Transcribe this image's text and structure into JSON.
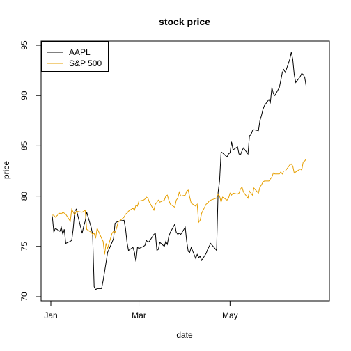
{
  "chart_data": {
    "type": "line",
    "title": "stock price",
    "xlabel": "date",
    "ylabel": "price",
    "xlim": [
      "2019-01-01",
      "2019-06-30"
    ],
    "ylim": [
      70,
      95
    ],
    "grid": false,
    "legend_position": "top-left",
    "x_ticks": [
      {
        "label": "Jan",
        "date": "2019-01-01"
      },
      {
        "label": "Mar",
        "date": "2019-03-01"
      },
      {
        "label": "May",
        "date": "2019-05-01"
      }
    ],
    "y_ticks": [
      70,
      75,
      80,
      85,
      90,
      95
    ],
    "series": [
      {
        "name": "AAPL",
        "color": "#000000",
        "points": [
          [
            "2019-01-02",
            78.0
          ],
          [
            "2019-01-03",
            76.4
          ],
          [
            "2019-01-04",
            76.8
          ],
          [
            "2019-01-07",
            76.5
          ],
          [
            "2019-01-08",
            76.9
          ],
          [
            "2019-01-09",
            76.2
          ],
          [
            "2019-01-10",
            76.7
          ],
          [
            "2019-01-11",
            75.3
          ],
          [
            "2019-01-14",
            75.5
          ],
          [
            "2019-01-15",
            75.6
          ],
          [
            "2019-01-16",
            76.8
          ],
          [
            "2019-01-17",
            78.5
          ],
          [
            "2019-01-18",
            78.7
          ],
          [
            "2019-01-22",
            76.3
          ],
          [
            "2019-01-23",
            77.0
          ],
          [
            "2019-01-24",
            77.5
          ],
          [
            "2019-01-25",
            78.4
          ],
          [
            "2019-01-28",
            76.9
          ],
          [
            "2019-01-29",
            76.2
          ],
          [
            "2019-01-30",
            71.0
          ],
          [
            "2019-01-31",
            70.7
          ],
          [
            "2019-02-01",
            70.8
          ],
          [
            "2019-02-04",
            70.8
          ],
          [
            "2019-02-05",
            71.6
          ],
          [
            "2019-02-06",
            72.5
          ],
          [
            "2019-02-07",
            73.4
          ],
          [
            "2019-02-08",
            74.4
          ],
          [
            "2019-02-11",
            75.4
          ],
          [
            "2019-02-12",
            75.8
          ],
          [
            "2019-02-13",
            77.3
          ],
          [
            "2019-02-14",
            77.4
          ],
          [
            "2019-02-15",
            77.5
          ],
          [
            "2019-02-19",
            77.6
          ],
          [
            "2019-02-20",
            76.8
          ],
          [
            "2019-02-21",
            75.4
          ],
          [
            "2019-02-22",
            74.6
          ],
          [
            "2019-02-25",
            74.9
          ],
          [
            "2019-02-26",
            74.4
          ],
          [
            "2019-02-27",
            73.5
          ],
          [
            "2019-02-28",
            74.9
          ],
          [
            "2019-03-01",
            74.8
          ],
          [
            "2019-03-04",
            75.0
          ],
          [
            "2019-03-05",
            75.1
          ],
          [
            "2019-03-06",
            75.6
          ],
          [
            "2019-03-07",
            75.4
          ],
          [
            "2019-03-08",
            75.5
          ],
          [
            "2019-03-11",
            76.2
          ],
          [
            "2019-03-12",
            76.3
          ],
          [
            "2019-03-13",
            74.6
          ],
          [
            "2019-03-14",
            74.7
          ],
          [
            "2019-03-15",
            75.4
          ],
          [
            "2019-03-18",
            75.0
          ],
          [
            "2019-03-19",
            75.5
          ],
          [
            "2019-03-20",
            75.2
          ],
          [
            "2019-03-21",
            76.0
          ],
          [
            "2019-03-22",
            76.4
          ],
          [
            "2019-03-25",
            77.2
          ],
          [
            "2019-03-26",
            76.4
          ],
          [
            "2019-03-27",
            76.2
          ],
          [
            "2019-03-28",
            76.3
          ],
          [
            "2019-03-29",
            76.2
          ],
          [
            "2019-04-01",
            76.9
          ],
          [
            "2019-04-02",
            75.5
          ],
          [
            "2019-04-03",
            74.5
          ],
          [
            "2019-04-04",
            74.4
          ],
          [
            "2019-04-05",
            74.9
          ],
          [
            "2019-04-08",
            73.8
          ],
          [
            "2019-04-09",
            74.2
          ],
          [
            "2019-04-10",
            73.9
          ],
          [
            "2019-04-11",
            74.0
          ],
          [
            "2019-04-12",
            73.6
          ],
          [
            "2019-04-15",
            74.3
          ],
          [
            "2019-04-16",
            74.7
          ],
          [
            "2019-04-17",
            75.0
          ],
          [
            "2019-04-18",
            75.3
          ],
          [
            "2019-04-22",
            74.6
          ],
          [
            "2019-04-23",
            80.4
          ],
          [
            "2019-04-24",
            81.5
          ],
          [
            "2019-04-25",
            84.4
          ],
          [
            "2019-04-26",
            84.3
          ],
          [
            "2019-04-29",
            83.9
          ],
          [
            "2019-04-30",
            84.2
          ],
          [
            "2019-05-01",
            84.3
          ],
          [
            "2019-05-02",
            85.4
          ],
          [
            "2019-05-03",
            84.6
          ],
          [
            "2019-05-06",
            84.9
          ],
          [
            "2019-05-07",
            84.2
          ],
          [
            "2019-05-08",
            84.1
          ],
          [
            "2019-05-09",
            84.5
          ],
          [
            "2019-05-10",
            84.8
          ],
          [
            "2019-05-13",
            84.2
          ],
          [
            "2019-05-14",
            86.0
          ],
          [
            "2019-05-15",
            86.1
          ],
          [
            "2019-05-16",
            86.5
          ],
          [
            "2019-05-17",
            86.6
          ],
          [
            "2019-05-20",
            86.5
          ],
          [
            "2019-05-21",
            87.5
          ],
          [
            "2019-05-22",
            88.0
          ],
          [
            "2019-05-23",
            88.6
          ],
          [
            "2019-05-24",
            89.0
          ],
          [
            "2019-05-27",
            89.6
          ],
          [
            "2019-05-28",
            89.3
          ],
          [
            "2019-05-29",
            90.8
          ],
          [
            "2019-05-30",
            90.2
          ],
          [
            "2019-05-31",
            90.0
          ],
          [
            "2019-06-03",
            90.8
          ],
          [
            "2019-06-04",
            91.5
          ],
          [
            "2019-06-05",
            92.3
          ],
          [
            "2019-06-06",
            92.6
          ],
          [
            "2019-06-07",
            92.3
          ],
          [
            "2019-06-10",
            93.6
          ],
          [
            "2019-06-11",
            94.3
          ],
          [
            "2019-06-12",
            93.6
          ],
          [
            "2019-06-13",
            92.1
          ],
          [
            "2019-06-14",
            91.3
          ],
          [
            "2019-06-17",
            91.9
          ],
          [
            "2019-06-18",
            92.2
          ],
          [
            "2019-06-19",
            92.1
          ],
          [
            "2019-06-20",
            91.8
          ],
          [
            "2019-06-21",
            90.9
          ]
        ]
      },
      {
        "name": "S&P 500",
        "color": "#E69F00",
        "points": [
          [
            "2019-01-02",
            78.1
          ],
          [
            "2019-01-03",
            78.1
          ],
          [
            "2019-01-04",
            77.9
          ],
          [
            "2019-01-07",
            78.3
          ],
          [
            "2019-01-08",
            78.2
          ],
          [
            "2019-01-09",
            78.4
          ],
          [
            "2019-01-10",
            78.3
          ],
          [
            "2019-01-11",
            78.2
          ],
          [
            "2019-01-14",
            77.5
          ],
          [
            "2019-01-15",
            78.7
          ],
          [
            "2019-01-16",
            78.4
          ],
          [
            "2019-01-17",
            78.1
          ],
          [
            "2019-01-18",
            78.5
          ],
          [
            "2019-01-22",
            78.4
          ],
          [
            "2019-01-23",
            78.5
          ],
          [
            "2019-01-24",
            78.6
          ],
          [
            "2019-01-25",
            76.7
          ],
          [
            "2019-01-28",
            76.4
          ],
          [
            "2019-01-29",
            76.2
          ],
          [
            "2019-01-30",
            76.3
          ],
          [
            "2019-01-31",
            75.8
          ],
          [
            "2019-02-01",
            76.8
          ],
          [
            "2019-02-04",
            75.8
          ],
          [
            "2019-02-05",
            75.5
          ],
          [
            "2019-02-06",
            74.2
          ],
          [
            "2019-02-07",
            75.3
          ],
          [
            "2019-02-08",
            74.8
          ],
          [
            "2019-02-11",
            76.3
          ],
          [
            "2019-02-12",
            76.5
          ],
          [
            "2019-02-13",
            76.4
          ],
          [
            "2019-02-14",
            76.8
          ],
          [
            "2019-02-15",
            77.4
          ],
          [
            "2019-02-19",
            77.9
          ],
          [
            "2019-02-20",
            78.2
          ],
          [
            "2019-02-21",
            78.3
          ],
          [
            "2019-02-22",
            78.5
          ],
          [
            "2019-02-25",
            78.8
          ],
          [
            "2019-02-26",
            78.6
          ],
          [
            "2019-02-27",
            79.1
          ],
          [
            "2019-02-28",
            79.0
          ],
          [
            "2019-03-01",
            79.5
          ],
          [
            "2019-03-04",
            79.6
          ],
          [
            "2019-03-05",
            79.7
          ],
          [
            "2019-03-06",
            79.9
          ],
          [
            "2019-03-07",
            79.8
          ],
          [
            "2019-03-08",
            79.4
          ],
          [
            "2019-03-11",
            78.6
          ],
          [
            "2019-03-12",
            79.2
          ],
          [
            "2019-03-13",
            79.4
          ],
          [
            "2019-03-14",
            79.6
          ],
          [
            "2019-03-15",
            79.4
          ],
          [
            "2019-03-18",
            79.6
          ],
          [
            "2019-03-19",
            80.0
          ],
          [
            "2019-03-20",
            80.1
          ],
          [
            "2019-03-21",
            79.6
          ],
          [
            "2019-03-22",
            79.2
          ],
          [
            "2019-03-25",
            78.9
          ],
          [
            "2019-03-26",
            79.6
          ],
          [
            "2019-03-27",
            79.8
          ],
          [
            "2019-03-28",
            80.4
          ],
          [
            "2019-03-29",
            80.0
          ],
          [
            "2019-04-01",
            80.1
          ],
          [
            "2019-04-02",
            80.5
          ],
          [
            "2019-04-03",
            80.6
          ],
          [
            "2019-04-04",
            79.9
          ],
          [
            "2019-04-05",
            79.3
          ],
          [
            "2019-04-08",
            79.0
          ],
          [
            "2019-04-09",
            79.2
          ],
          [
            "2019-04-10",
            77.4
          ],
          [
            "2019-04-11",
            77.6
          ],
          [
            "2019-04-12",
            78.3
          ],
          [
            "2019-04-15",
            79.2
          ],
          [
            "2019-04-16",
            79.3
          ],
          [
            "2019-04-17",
            79.5
          ],
          [
            "2019-04-18",
            79.6
          ],
          [
            "2019-04-22",
            79.8
          ],
          [
            "2019-04-23",
            80.2
          ],
          [
            "2019-04-24",
            80.0
          ],
          [
            "2019-04-25",
            79.4
          ],
          [
            "2019-04-26",
            79.9
          ],
          [
            "2019-04-29",
            79.6
          ],
          [
            "2019-04-30",
            79.8
          ],
          [
            "2019-05-01",
            80.3
          ],
          [
            "2019-05-02",
            80.1
          ],
          [
            "2019-05-03",
            80.3
          ],
          [
            "2019-05-06",
            80.2
          ],
          [
            "2019-05-07",
            80.3
          ],
          [
            "2019-05-08",
            80.7
          ],
          [
            "2019-05-09",
            80.9
          ],
          [
            "2019-05-10",
            80.4
          ],
          [
            "2019-05-13",
            79.8
          ],
          [
            "2019-05-14",
            80.5
          ],
          [
            "2019-05-15",
            80.3
          ],
          [
            "2019-05-16",
            80.1
          ],
          [
            "2019-05-17",
            80.8
          ],
          [
            "2019-05-20",
            80.3
          ],
          [
            "2019-05-21",
            80.9
          ],
          [
            "2019-05-22",
            81.1
          ],
          [
            "2019-05-23",
            81.4
          ],
          [
            "2019-05-24",
            81.5
          ],
          [
            "2019-05-27",
            81.5
          ],
          [
            "2019-05-28",
            81.7
          ],
          [
            "2019-05-29",
            81.9
          ],
          [
            "2019-05-30",
            82.3
          ],
          [
            "2019-05-31",
            82.2
          ],
          [
            "2019-06-03",
            82.2
          ],
          [
            "2019-06-04",
            82.4
          ],
          [
            "2019-06-05",
            82.2
          ],
          [
            "2019-06-06",
            82.5
          ],
          [
            "2019-06-07",
            82.5
          ],
          [
            "2019-06-10",
            83.1
          ],
          [
            "2019-06-11",
            83.2
          ],
          [
            "2019-06-12",
            83.0
          ],
          [
            "2019-06-13",
            82.3
          ],
          [
            "2019-06-14",
            82.4
          ],
          [
            "2019-06-17",
            82.7
          ],
          [
            "2019-06-18",
            82.6
          ],
          [
            "2019-06-19",
            83.4
          ],
          [
            "2019-06-20",
            83.5
          ],
          [
            "2019-06-21",
            83.7
          ]
        ]
      }
    ]
  }
}
